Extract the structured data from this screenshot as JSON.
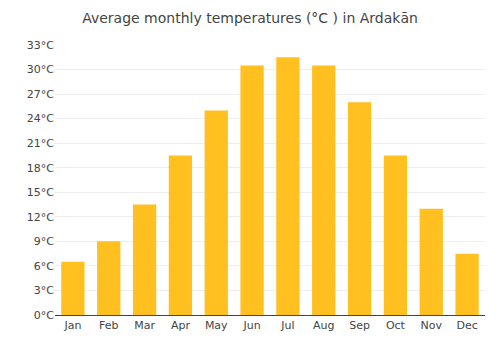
{
  "chart_data": {
    "type": "bar",
    "title": "Average monthly temperatures (°C ) in Ardakān",
    "categories": [
      "Jan",
      "Feb",
      "Mar",
      "Apr",
      "May",
      "Jun",
      "Jul",
      "Aug",
      "Sep",
      "Oct",
      "Nov",
      "Dec"
    ],
    "values": [
      6.5,
      9.0,
      13.5,
      19.5,
      25.0,
      30.5,
      31.5,
      30.5,
      26.0,
      19.5,
      13.0,
      7.5
    ],
    "color": "#FFC020",
    "ylim": [
      0,
      33
    ],
    "yticks": [
      {
        "value": 0,
        "label": "0°C"
      },
      {
        "value": 3,
        "label": "3°C"
      },
      {
        "value": 6,
        "label": "6°C"
      },
      {
        "value": 9,
        "label": "9°C"
      },
      {
        "value": 12,
        "label": "12°C"
      },
      {
        "value": 15,
        "label": "15°C"
      },
      {
        "value": 18,
        "label": "18°C"
      },
      {
        "value": 21,
        "label": "21°C"
      },
      {
        "value": 24,
        "label": "24°C"
      },
      {
        "value": 27,
        "label": "27°C"
      },
      {
        "value": 30,
        "label": "30°C"
      },
      {
        "value": 33,
        "label": "33°C"
      }
    ],
    "grid": true
  }
}
